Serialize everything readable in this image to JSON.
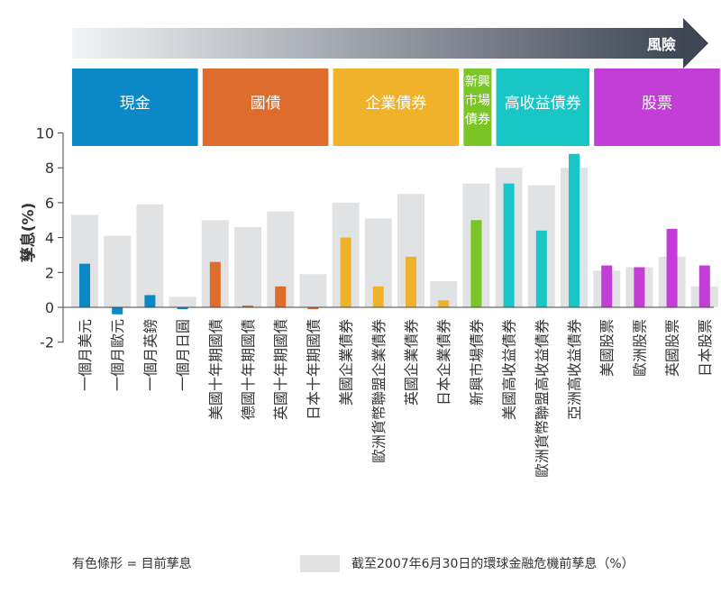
{
  "risk_label": "風險",
  "categories": [
    {
      "label": "現金",
      "color": "#0b88c6"
    },
    {
      "label": "國債",
      "color": "#de6c2c"
    },
    {
      "label": "企業債券",
      "color": "#f0b12b"
    },
    {
      "label": "新興市場債券",
      "color": "#7bc626"
    },
    {
      "label": "高收益債券",
      "color": "#19c6c6"
    },
    {
      "label": "股票",
      "color": "#c23ed6"
    }
  ],
  "legend": {
    "colored_bar": "有色條形 = 目前孳息",
    "gray_bar": "截至2007年6月30日的環球金融危機前孳息（%）"
  },
  "chart_data": {
    "type": "bar",
    "ylabel": "孳息(%)",
    "ylim": [
      -2,
      10
    ],
    "yticks": [
      -2,
      0,
      2,
      4,
      6,
      8,
      10
    ],
    "grid": false,
    "legend_position": "bottom",
    "categories": [
      "一個月美元",
      "一個月歐元",
      "一個月英鎊",
      "一個月日圓",
      "美國十年期國債",
      "德國十年期國債",
      "英國十年期國債",
      "日本十年期國債",
      "美國企業債券",
      "歐洲貨幣聯盟企業債券",
      "英國企業債券",
      "日本企業債券",
      "新興市場債券",
      "美國高收益債券",
      "歐洲貨幣聯盟高收益債券",
      "亞洲高收益債券",
      "美國股票",
      "歐洲股票",
      "英國股票",
      "日本股票"
    ],
    "group": [
      0,
      0,
      0,
      0,
      1,
      1,
      1,
      1,
      2,
      2,
      2,
      2,
      3,
      4,
      4,
      4,
      5,
      5,
      5,
      5
    ],
    "series": [
      {
        "name": "目前孳息",
        "values": [
          2.5,
          -0.4,
          0.7,
          -0.1,
          2.6,
          0.1,
          1.2,
          -0.1,
          4.0,
          1.2,
          2.9,
          0.4,
          5.0,
          7.1,
          4.4,
          8.8,
          2.4,
          2.3,
          4.5,
          2.4
        ]
      },
      {
        "name": "截至2007年6月30日的環球金融危機前孳息（%）",
        "values": [
          5.3,
          4.1,
          5.9,
          0.6,
          5.0,
          4.6,
          5.5,
          1.9,
          6.0,
          5.1,
          6.5,
          1.5,
          7.1,
          8.0,
          7.0,
          8.0,
          2.1,
          2.3,
          2.9,
          1.2
        ]
      }
    ]
  }
}
